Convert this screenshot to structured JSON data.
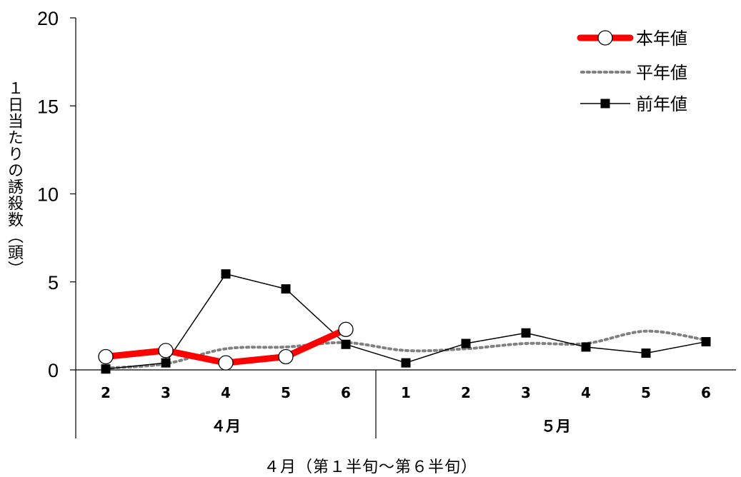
{
  "chart_data": {
    "type": "line",
    "ylabel": "１日当たりの誘殺数（頭）",
    "xlabel": "４月（第１半旬～第６半旬）",
    "ylim": [
      0,
      20
    ],
    "yticks": [
      "0",
      "5",
      "10",
      "15",
      "20"
    ],
    "categories": [
      "2",
      "3",
      "4",
      "5",
      "6",
      "1",
      "2",
      "3",
      "4",
      "5",
      "6"
    ],
    "groups": [
      {
        "label": "４月",
        "count": 5
      },
      {
        "label": "５月",
        "count": 6
      }
    ],
    "legend_position": "top-right",
    "series": [
      {
        "name": "本年値",
        "style": "thick-red-open-circle",
        "color": "#ff0000",
        "values": [
          0.75,
          1.1,
          0.4,
          0.75,
          2.3,
          null,
          null,
          null,
          null,
          null,
          null
        ]
      },
      {
        "name": "平年値",
        "style": "dotted-gray",
        "color": "#808080",
        "values": [
          0.1,
          0.35,
          1.2,
          1.3,
          1.55,
          1.1,
          1.2,
          1.5,
          1.5,
          2.2,
          1.7
        ]
      },
      {
        "name": "前年値",
        "style": "black-square",
        "color": "#000000",
        "values": [
          0.05,
          0.4,
          5.45,
          4.6,
          1.45,
          0.4,
          1.5,
          2.1,
          1.3,
          0.95,
          1.6
        ]
      }
    ]
  }
}
